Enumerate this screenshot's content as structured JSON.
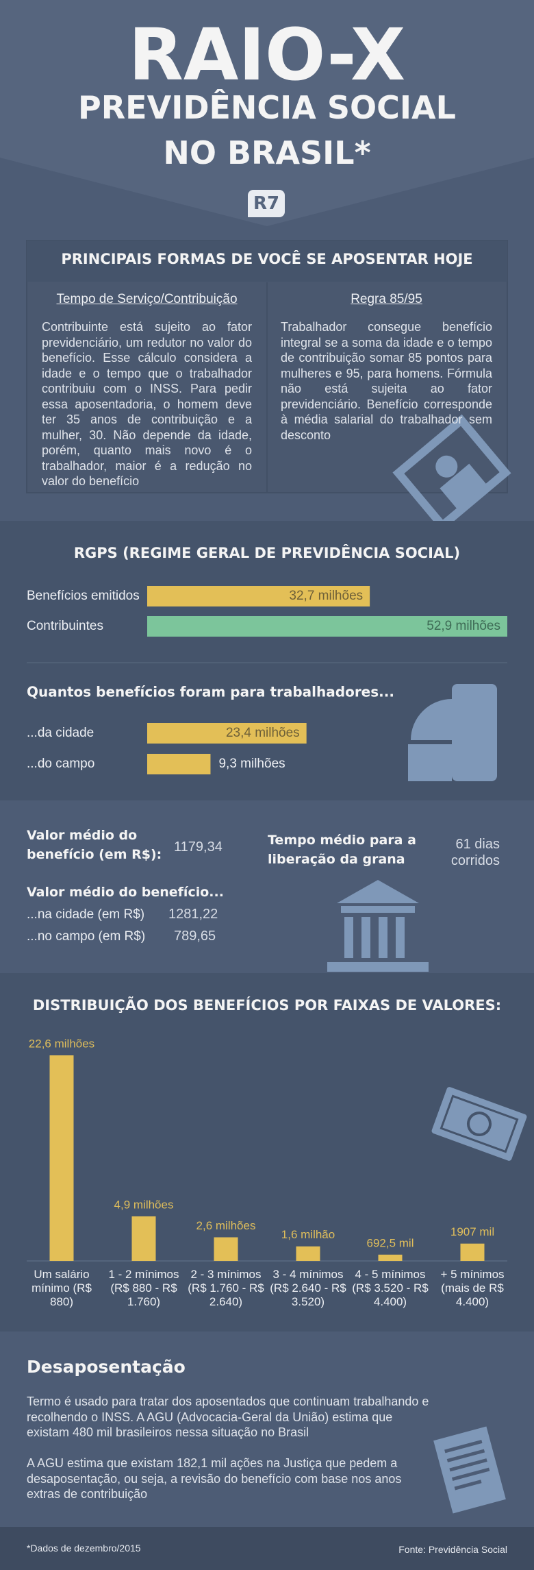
{
  "header": {
    "title": "RAIO-X",
    "subtitle": [
      "PREVIDÊNCIA SOCIAL",
      "NO BRASIL*"
    ],
    "logo": "R7"
  },
  "retirement": {
    "title": "PRINCIPAIS FORMAS DE VOCÊ SE APOSENTAR HOJE",
    "columns": [
      {
        "heading": "Tempo de Serviço/Contribuição",
        "text": "Contribuinte está sujeito ao fator previdenciário, um redutor no valor do benefício. Esse cálculo considera a idade e o tempo que o trabalhador contribuiu com o INSS. Para pedir essa aposentadoria, o homem deve ter 35 anos de contribuição e a mulher, 30. Não depende da idade, porém, quanto mais novo é o trabalhador, maior é a redução no valor do benefício"
      },
      {
        "heading": "Regra 85/95",
        "text": "Trabalhador consegue benefício integral se a soma da idade e o tempo de contribuição somar 85 pontos para mulheres e 95, para homens. Fórmula não está sujeita ao fator previdenciário. Benefício corresponde à média salarial do trabalhador sem desconto"
      }
    ]
  },
  "chart_data": [
    {
      "type": "bar",
      "orientation": "horizontal",
      "title": "RGPS (REGIME GERAL DE PREVIDÊNCIA SOCIAL)",
      "categories": [
        "Benefícios emitidos",
        "Contribuintes"
      ],
      "values": [
        32.7,
        52.9
      ],
      "value_labels": [
        "32,7 milhões",
        "52,9 milhões"
      ],
      "colors": [
        "#e3bf57",
        "#7cc59b"
      ]
    },
    {
      "type": "bar",
      "orientation": "horizontal",
      "title": "Quantos benefícios foram para trabalhadores...",
      "categories": [
        "...da cidade",
        "...do campo"
      ],
      "values": [
        23.4,
        9.3
      ],
      "value_labels": [
        "23,4 milhões",
        "9,3 milhões"
      ],
      "colors": [
        "#e3bf57",
        "#e3bf57"
      ]
    },
    {
      "type": "bar",
      "orientation": "vertical",
      "title": "DISTRIBUIÇÃO DOS BENEFÍCIOS POR FAIXAS DE VALORES:",
      "categories": [
        "Um salário mínimo (R$ 880)",
        "1 - 2 mínimos (R$ 880 - R$ 1.760)",
        "2 - 3 mínimos (R$ 1.760 - R$ 2.640)",
        "3 - 4 mínimos (R$ 2.640 - R$ 3.520)",
        "4 - 5 mínimos (R$ 3.520 - R$ 4.400)",
        "+ 5 mínimos (mais de R$ 4.400)"
      ],
      "values": [
        22.6,
        4.9,
        2.6,
        1.6,
        0.6925,
        1.907
      ],
      "value_labels": [
        "22,6 milhões",
        "4,9 milhões",
        "2,6 milhões",
        "1,6 milhão",
        "692,5 mil",
        "1907 mil"
      ],
      "colors": [
        "#e3bf57",
        "#e3bf57",
        "#e3bf57",
        "#e3bf57",
        "#e3bf57",
        "#e3bf57"
      ]
    }
  ],
  "averages": {
    "benefit_label": "Valor médio do benefício (em R$):",
    "benefit_value": "1179,34",
    "time_label": "Tempo médio para a liberação da grana",
    "time_value": "61 dias corridos",
    "split_title": "Valor médio do benefício...",
    "city_label": "...na cidade (em R$)",
    "city_value": "1281,22",
    "rural_label": "...no campo (em R$)",
    "rural_value": "789,65"
  },
  "unretirement": {
    "title": "Desaposentação",
    "paragraphs": [
      "Termo é usado para tratar dos aposentados que continuam trabalhando e recolhendo o INSS. A AGU (Advocacia-Geral da União) estima que existam 480 mil brasileiros nessa situação no Brasil",
      "A AGU estima que existam 182,1 mil ações na Justiça que pedem a desaposentação, ou seja, a revisão do benefício com base nos anos extras de contribuição"
    ]
  },
  "footer": {
    "note": "*Dados de dezembro/2015",
    "source": "Fonte: Previdência Social"
  }
}
